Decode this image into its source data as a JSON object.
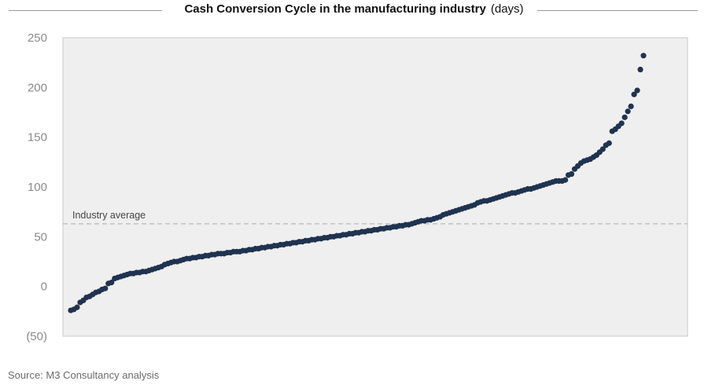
{
  "chart_data": {
    "type": "scatter",
    "title": "Cash Conversion Cycle in the manufacturing industry",
    "title_unit": "(days)",
    "xlabel": "",
    "ylabel": "",
    "ylim": [
      -50,
      250
    ],
    "y_ticks": [
      -50,
      0,
      50,
      100,
      150,
      200,
      250
    ],
    "y_tick_labels": [
      "(50)",
      "0",
      "50",
      "100",
      "150",
      "200",
      "250"
    ],
    "grid": false,
    "legend": "none",
    "colors": {
      "points": "#1f3350",
      "plot_background": "#efefef",
      "reference_line": "#b9b9b9"
    },
    "reference_line": {
      "label": "Industry average",
      "y": 63
    },
    "series": [
      {
        "values": [
          -24,
          -23,
          -21,
          -16,
          -14,
          -11,
          -10,
          -8,
          -6,
          -5,
          -3,
          -2,
          3,
          4,
          8,
          9,
          10,
          11,
          12,
          13,
          13,
          14,
          14,
          15,
          15,
          16,
          17,
          18,
          19,
          20,
          22,
          23,
          24,
          25,
          25,
          26,
          27,
          28,
          28,
          29,
          29,
          30,
          30,
          31,
          31,
          32,
          32,
          33,
          33,
          33,
          34,
          34,
          35,
          35,
          35,
          36,
          36,
          37,
          37,
          38,
          38,
          39,
          39,
          40,
          40,
          41,
          41,
          42,
          42,
          43,
          43,
          44,
          44,
          45,
          45,
          46,
          46,
          47,
          47,
          48,
          48,
          49,
          49,
          50,
          50,
          51,
          51,
          52,
          52,
          53,
          53,
          54,
          54,
          55,
          55,
          56,
          56,
          57,
          57,
          58,
          58,
          59,
          59,
          60,
          60,
          61,
          61,
          62,
          62,
          63,
          64,
          65,
          66,
          66,
          67,
          67,
          68,
          69,
          70,
          72,
          73,
          74,
          75,
          76,
          77,
          78,
          79,
          80,
          81,
          82,
          84,
          85,
          86,
          86,
          87,
          88,
          89,
          90,
          91,
          92,
          93,
          94,
          94,
          95,
          96,
          97,
          98,
          98,
          99,
          100,
          101,
          102,
          103,
          104,
          105,
          106,
          106,
          106,
          107,
          112,
          113,
          118,
          121,
          124,
          126,
          127,
          128,
          130,
          132,
          135,
          138,
          142,
          144,
          156,
          158,
          161,
          164,
          170,
          176,
          181,
          193,
          197,
          218,
          232
        ]
      }
    ]
  },
  "source": "Source: M3 Consultancy analysis"
}
